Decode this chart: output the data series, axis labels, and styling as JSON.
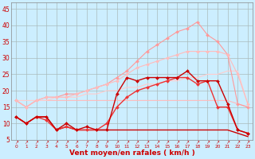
{
  "background_color": "#cceeff",
  "grid_color": "#aabbbb",
  "xlabel": "Vent moyen/en rafales ( km/h )",
  "xlabel_color": "#cc0000",
  "xlabel_fontsize": 6.5,
  "ylim": [
    5,
    47
  ],
  "xlim": [
    0,
    23
  ],
  "series": [
    {
      "x": [
        0,
        1,
        2,
        3,
        4,
        5,
        6,
        7,
        8,
        9,
        10,
        11,
        12,
        13,
        14,
        15,
        16,
        17,
        18,
        19,
        20,
        21,
        22,
        23
      ],
      "y": [
        17,
        15,
        17,
        17,
        17,
        17,
        17,
        17,
        17,
        17,
        17,
        17,
        17,
        17,
        17,
        17,
        17,
        17,
        17,
        17,
        17,
        17,
        16,
        15
      ],
      "color": "#ffbbbb",
      "linewidth": 0.8,
      "marker": null,
      "zorder": 2
    },
    {
      "x": [
        0,
        1,
        2,
        3,
        4,
        5,
        6,
        7,
        8,
        9,
        10,
        11,
        12,
        13,
        14,
        15,
        16,
        17,
        18,
        19,
        20,
        21,
        22,
        23
      ],
      "y": [
        17,
        15,
        17,
        18,
        18,
        19,
        19,
        20,
        21,
        22,
        24,
        26,
        29,
        32,
        34,
        36,
        38,
        39,
        41,
        37,
        35,
        31,
        16,
        15
      ],
      "color": "#ff9999",
      "linewidth": 0.8,
      "marker": "D",
      "markersize": 2.0,
      "zorder": 3
    },
    {
      "x": [
        0,
        1,
        2,
        3,
        4,
        5,
        6,
        7,
        8,
        9,
        10,
        11,
        12,
        13,
        14,
        15,
        16,
        17,
        18,
        19,
        20,
        21,
        22,
        23
      ],
      "y": [
        17,
        15,
        17,
        18,
        18,
        18,
        19,
        20,
        21,
        22,
        23,
        25,
        27,
        28,
        29,
        30,
        31,
        32,
        32,
        32,
        32,
        31,
        25,
        16
      ],
      "color": "#ffbbbb",
      "linewidth": 0.8,
      "marker": "D",
      "markersize": 2.0,
      "zorder": 3
    },
    {
      "x": [
        0,
        1,
        2,
        3,
        4,
        5,
        6,
        7,
        8,
        9,
        10,
        11,
        12,
        13,
        14,
        15,
        16,
        17,
        18,
        19,
        20,
        21,
        22,
        23
      ],
      "y": [
        17,
        17,
        17,
        17,
        18,
        18,
        18,
        19,
        19,
        20,
        20,
        21,
        21,
        22,
        22,
        23,
        23,
        24,
        24,
        25,
        25,
        26,
        26,
        16
      ],
      "color": "#ffcccc",
      "linewidth": 0.8,
      "marker": null,
      "zorder": 2
    },
    {
      "x": [
        0,
        1,
        2,
        3,
        4,
        5,
        6,
        7,
        8,
        9,
        10,
        11,
        12,
        13,
        14,
        15,
        16,
        17,
        18,
        19,
        20,
        21,
        22,
        23
      ],
      "y": [
        12,
        10,
        12,
        12,
        8,
        9,
        8,
        8,
        8,
        8,
        8,
        8,
        8,
        8,
        8,
        8,
        8,
        8,
        8,
        8,
        8,
        8,
        7,
        6
      ],
      "color": "#cc0000",
      "linewidth": 1.0,
      "marker": null,
      "zorder": 4
    },
    {
      "x": [
        0,
        1,
        2,
        3,
        4,
        5,
        6,
        7,
        8,
        9,
        10,
        11,
        12,
        13,
        14,
        15,
        16,
        17,
        18,
        19,
        20,
        21,
        22,
        23
      ],
      "y": [
        12,
        10,
        12,
        12,
        8,
        10,
        8,
        9,
        8,
        8,
        19,
        24,
        23,
        24,
        24,
        24,
        24,
        26,
        23,
        23,
        23,
        16,
        8,
        7
      ],
      "color": "#cc0000",
      "linewidth": 1.0,
      "marker": "D",
      "markersize": 2.0,
      "zorder": 5
    },
    {
      "x": [
        0,
        1,
        2,
        3,
        4,
        5,
        6,
        7,
        8,
        9,
        10,
        11,
        12,
        13,
        14,
        15,
        16,
        17,
        18,
        19,
        20,
        21,
        22,
        23
      ],
      "y": [
        12,
        10,
        12,
        11,
        8,
        9,
        8,
        8,
        8,
        10,
        15,
        18,
        20,
        21,
        22,
        23,
        24,
        24,
        22,
        23,
        15,
        15,
        8,
        7
      ],
      "color": "#ee3333",
      "linewidth": 1.0,
      "marker": "D",
      "markersize": 2.0,
      "zorder": 4
    }
  ],
  "xtick_labels": [
    "0",
    "1",
    "2",
    "3",
    "4",
    "5",
    "6",
    "7",
    "8",
    "9",
    "10",
    "11",
    "12",
    "13",
    "14",
    "15",
    "16",
    "17",
    "18",
    "19",
    "20",
    "21",
    "22",
    "23"
  ],
  "ytick_labels": [
    "5",
    "10",
    "15",
    "20",
    "25",
    "30",
    "35",
    "40",
    "45"
  ]
}
